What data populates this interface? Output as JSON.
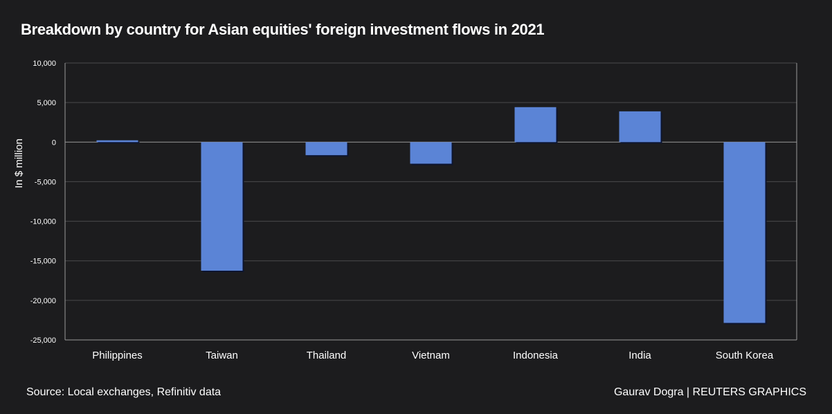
{
  "chart_data": {
    "type": "bar",
    "title": "Breakdown by country for Asian equities' foreign investment flows in 2021",
    "ylabel": "In $ million",
    "xlabel": "",
    "categories": [
      "Philippines",
      "Taiwan",
      "Thailand",
      "Vietnam",
      "Indonesia",
      "India",
      "South Korea"
    ],
    "values": [
      230,
      -16250,
      -1650,
      -2730,
      4420,
      3890,
      -22850
    ],
    "ylim": [
      -25000,
      10000
    ],
    "yticks": [
      10000,
      5000,
      0,
      -5000,
      -10000,
      -15000,
      -20000,
      -25000
    ],
    "ytick_labels": [
      "10,000",
      "5,000",
      "0",
      "-5,000",
      "-10,000",
      "-15,000",
      "-20,000",
      "-25,000"
    ],
    "grid": true,
    "legend": "none",
    "bar_color": "#5b84d6"
  },
  "footer": {
    "source": "Source: Local exchanges, Refinitiv data",
    "credit": "Gaurav Dogra | REUTERS GRAPHICS"
  }
}
